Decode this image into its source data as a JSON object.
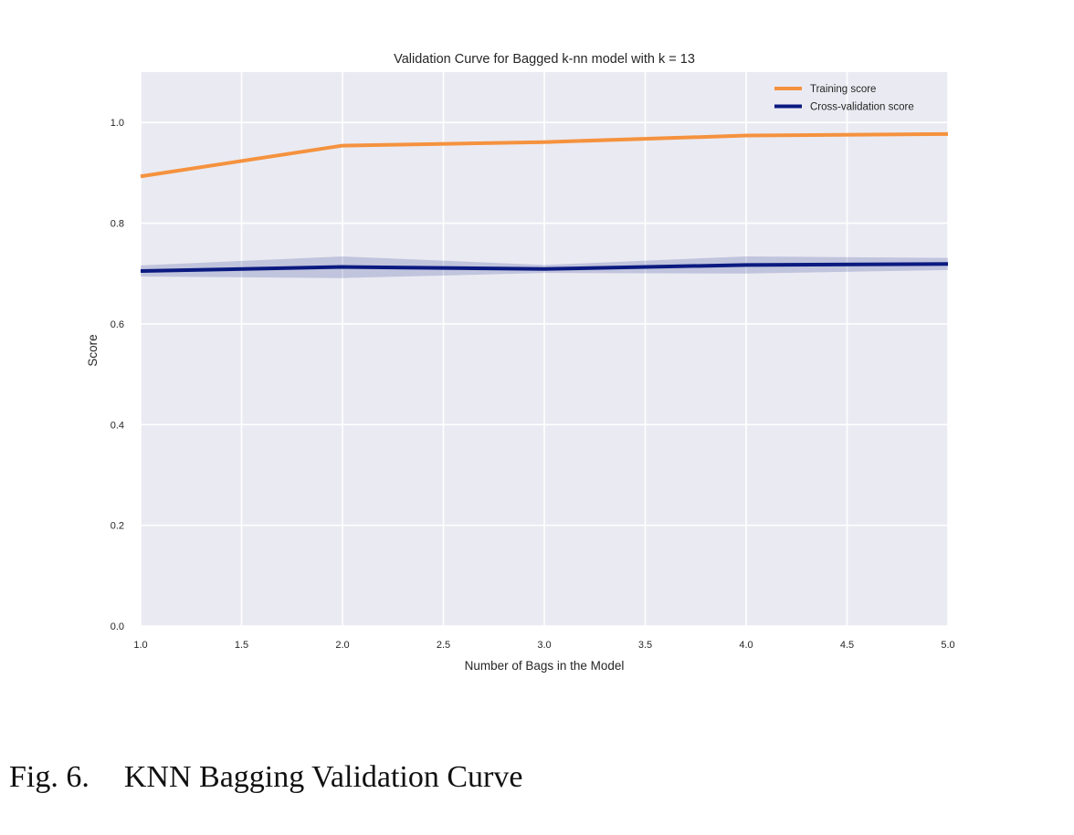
{
  "chart_data": {
    "type": "line",
    "title": "Validation Curve for Bagged k-nn model with k = 13",
    "xlabel": "Number of Bags in the Model",
    "ylabel": "Score",
    "xlim": [
      1.0,
      5.0
    ],
    "ylim": [
      0.0,
      1.1
    ],
    "x_ticks": [
      "1.0",
      "1.5",
      "2.0",
      "2.5",
      "3.0",
      "3.5",
      "4.0",
      "4.5",
      "5.0"
    ],
    "y_ticks": [
      "0.0",
      "0.2",
      "0.4",
      "0.6",
      "0.8",
      "1.0"
    ],
    "grid": true,
    "legend_position": "top-right",
    "x": [
      1,
      2,
      3,
      4,
      5
    ],
    "series": [
      {
        "name": "Training score",
        "color": "#f5923e",
        "values": [
          0.893,
          0.954,
          0.961,
          0.974,
          0.977
        ],
        "band_lower": [
          0.891,
          0.952,
          0.959,
          0.972,
          0.975
        ],
        "band_upper": [
          0.895,
          0.956,
          0.963,
          0.976,
          0.979
        ]
      },
      {
        "name": "Cross-validation score",
        "color": "#0a1a80",
        "values": [
          0.705,
          0.713,
          0.709,
          0.717,
          0.719
        ],
        "band_lower": [
          0.694,
          0.691,
          0.701,
          0.7,
          0.707
        ],
        "band_upper": [
          0.716,
          0.734,
          0.717,
          0.734,
          0.731
        ]
      }
    ]
  },
  "caption": {
    "label": "Fig. 6.",
    "text": "KNN Bagging Validation Curve"
  }
}
